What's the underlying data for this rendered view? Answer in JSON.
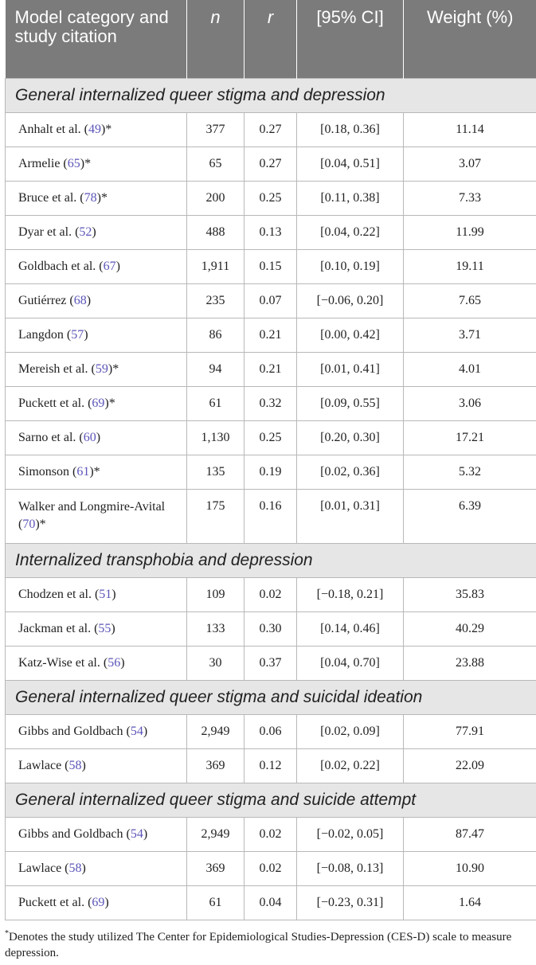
{
  "headers": {
    "category": "Model category and study citation",
    "n": "n",
    "r": "r",
    "ci": "[95% CI]",
    "weight": "Weight (%)"
  },
  "groups": [
    {
      "title": "General internalized queer stigma and depression",
      "rows": [
        {
          "study": "Anhalt et al. (",
          "ref": "49",
          "suffix": ")*",
          "n": "377",
          "r": "0.27",
          "ci": "[0.18, 0.36]",
          "weight": "11.14"
        },
        {
          "study": "Armelie (",
          "ref": "65",
          "suffix": ")*",
          "n": "65",
          "r": "0.27",
          "ci": "[0.04, 0.51]",
          "weight": "3.07"
        },
        {
          "study": "Bruce et al. (",
          "ref": "78",
          "suffix": ")*",
          "n": "200",
          "r": "0.25",
          "ci": "[0.11, 0.38]",
          "weight": "7.33"
        },
        {
          "study": "Dyar et al. (",
          "ref": "52",
          "suffix": ")",
          "n": "488",
          "r": "0.13",
          "ci": "[0.04, 0.22]",
          "weight": "11.99"
        },
        {
          "study": "Goldbach et al. (",
          "ref": "67",
          "suffix": ")",
          "n": "1,911",
          "r": "0.15",
          "ci": "[0.10, 0.19]",
          "weight": "19.11"
        },
        {
          "study": "Gutiérrez (",
          "ref": "68",
          "suffix": ")",
          "n": "235",
          "r": "0.07",
          "ci": "[−0.06, 0.20]",
          "weight": "7.65"
        },
        {
          "study": "Langdon (",
          "ref": "57",
          "suffix": ")",
          "n": "86",
          "r": "0.21",
          "ci": "[0.00, 0.42]",
          "weight": "3.71"
        },
        {
          "study": "Mereish et al. (",
          "ref": "59",
          "suffix": ")*",
          "n": "94",
          "r": "0.21",
          "ci": "[0.01, 0.41]",
          "weight": "4.01"
        },
        {
          "study": "Puckett et al. (",
          "ref": "69",
          "suffix": ")*",
          "n": "61",
          "r": "0.32",
          "ci": "[0.09, 0.55]",
          "weight": "3.06"
        },
        {
          "study": "Sarno et al. (",
          "ref": "60",
          "suffix": ")",
          "n": "1,130",
          "r": "0.25",
          "ci": "[0.20, 0.30]",
          "weight": "17.21"
        },
        {
          "study": "Simonson (",
          "ref": "61",
          "suffix": ")*",
          "n": "135",
          "r": "0.19",
          "ci": "[0.02, 0.36]",
          "weight": "5.32"
        },
        {
          "study": "Walker and Longmire-Avital (",
          "ref": "70",
          "suffix": ")*",
          "n": "175",
          "r": "0.16",
          "ci": "[0.01, 0.31]",
          "weight": "6.39",
          "tall": true
        }
      ]
    },
    {
      "title": "Internalized transphobia and depression",
      "rows": [
        {
          "study": "Chodzen et al. (",
          "ref": "51",
          "suffix": ")",
          "n": "109",
          "r": "0.02",
          "ci": "[−0.18, 0.21]",
          "weight": "35.83"
        },
        {
          "study": "Jackman et al. (",
          "ref": "55",
          "suffix": ")",
          "n": "133",
          "r": "0.30",
          "ci": "[0.14, 0.46]",
          "weight": "40.29"
        },
        {
          "study": "Katz-Wise et al. (",
          "ref": "56",
          "suffix": ")",
          "n": "30",
          "r": "0.37",
          "ci": "[0.04, 0.70]",
          "weight": "23.88"
        }
      ]
    },
    {
      "title": "General internalized queer stigma and suicidal ideation",
      "rows": [
        {
          "study": "Gibbs and Goldbach (",
          "ref": "54",
          "suffix": ")",
          "n": "2,949",
          "r": "0.06",
          "ci": "[0.02, 0.09]",
          "weight": "77.91"
        },
        {
          "study": "Lawlace (",
          "ref": "58",
          "suffix": ")",
          "n": "369",
          "r": "0.12",
          "ci": "[0.02, 0.22]",
          "weight": "22.09"
        }
      ]
    },
    {
      "title": "General internalized queer stigma and suicide attempt",
      "rows": [
        {
          "study": "Gibbs and Goldbach (",
          "ref": "54",
          "suffix": ")",
          "n": "2,949",
          "r": "0.02",
          "ci": "[−0.02, 0.05]",
          "weight": "87.47"
        },
        {
          "study": "Lawlace (",
          "ref": "58",
          "suffix": ")",
          "n": "369",
          "r": "0.02",
          "ci": "[−0.08, 0.13]",
          "weight": "10.90"
        },
        {
          "study": "Puckett et al. (",
          "ref": "69",
          "suffix": ")",
          "n": "61",
          "r": "0.04",
          "ci": "[−0.23, 0.31]",
          "weight": "1.64"
        }
      ]
    }
  ],
  "footnote": {
    "mark": "*",
    "text": "Denotes the study utilized The Center for Epidemiological Studies-Depression (CES-D) scale to measure depression."
  },
  "colors": {
    "header_bg": "#7b7b7b",
    "group_bg": "#e6e6e6",
    "ref_link": "#5b55b8"
  }
}
